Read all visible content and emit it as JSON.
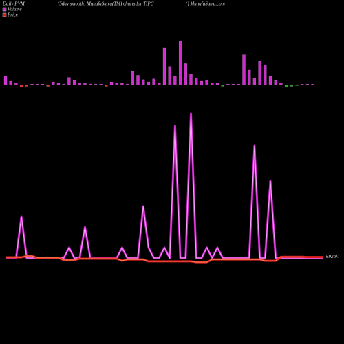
{
  "chart_data": {
    "type": "pvm",
    "title_left": "Daily PVM",
    "title": "(5day smooth) MunafaSutra(TM) charts for TIPC",
    "title_right": "() MunafaSutra.com",
    "bars": {
      "values": [
        12,
        5,
        3,
        -3,
        -2,
        1,
        1,
        1,
        -2,
        4,
        2,
        1,
        10,
        6,
        3,
        2,
        1,
        1,
        1,
        -2,
        4,
        3,
        2,
        1,
        19,
        13,
        7,
        4,
        8,
        3,
        50,
        25,
        12,
        60,
        29,
        15,
        9,
        5,
        6,
        3,
        2,
        -2,
        1,
        1,
        1,
        41,
        20,
        9,
        32,
        27,
        12,
        6,
        3,
        -3,
        -2,
        -1,
        1,
        1,
        1,
        0,
        0
      ],
      "colors": [
        "#d02ad0",
        "#d02ad0",
        "#d02ad0",
        "#e03030",
        "#e03030",
        "#d02ad0",
        "#d02ad0",
        "#d02ad0",
        "#e03030",
        "#d02ad0",
        "#d02ad0",
        "#d02ad0",
        "#d02ad0",
        "#d02ad0",
        "#d02ad0",
        "#d02ad0",
        "#d02ad0",
        "#d02ad0",
        "#d02ad0",
        "#e03030",
        "#d02ad0",
        "#d02ad0",
        "#d02ad0",
        "#d02ad0",
        "#d02ad0",
        "#d02ad0",
        "#d02ad0",
        "#d02ad0",
        "#d02ad0",
        "#d02ad0",
        "#d02ad0",
        "#d02ad0",
        "#d02ad0",
        "#d02ad0",
        "#d02ad0",
        "#d02ad0",
        "#d02ad0",
        "#d02ad0",
        "#d02ad0",
        "#d02ad0",
        "#d02ad0",
        "#22aa22",
        "#d02ad0",
        "#d02ad0",
        "#d02ad0",
        "#d02ad0",
        "#d02ad0",
        "#d02ad0",
        "#d02ad0",
        "#d02ad0",
        "#d02ad0",
        "#d02ad0",
        "#d02ad0",
        "#22aa22",
        "#22aa22",
        "#22aa22",
        "#d02ad0",
        "#d02ad0",
        "#d02ad0",
        "#d02ad0",
        "#d02ad0"
      ],
      "ylim": [
        -10,
        65
      ]
    },
    "xlim": [
      0,
      60
    ],
    "ylim": [
      -10,
      225
    ],
    "y2lim": [
      690,
      750
    ],
    "series": [
      {
        "name": "Volume",
        "color": "#d02ad0",
        "values": [
          0,
          0,
          0,
          60,
          0,
          0,
          0,
          0,
          0,
          0,
          0,
          0,
          15,
          0,
          0,
          45,
          0,
          0,
          0,
          0,
          0,
          0,
          15,
          0,
          0,
          0,
          75,
          15,
          0,
          0,
          15,
          0,
          192,
          0,
          0,
          210,
          0,
          0,
          15,
          0,
          15,
          0,
          0,
          0,
          0,
          0,
          0,
          163,
          0,
          0,
          112,
          0,
          0,
          0,
          0,
          0,
          0,
          0,
          0,
          0,
          0
        ]
      },
      {
        "name": "Price",
        "color": "#e02020",
        "axis": "y2",
        "values": [
          692.8,
          692.8,
          692.8,
          692.8,
          693.3,
          693.3,
          692.6,
          692.6,
          692.6,
          692.6,
          692.6,
          691.8,
          691.8,
          691.8,
          692.3,
          692.3,
          692.3,
          692.3,
          692.3,
          692.3,
          692.3,
          692.3,
          691.5,
          692,
          692,
          692,
          692,
          691.3,
          691.3,
          691.3,
          691.3,
          691.3,
          691.3,
          691.3,
          691.3,
          691.3,
          691,
          691,
          691,
          692,
          692,
          692,
          692,
          692,
          692,
          692,
          692,
          692,
          692,
          691.5,
          691.5,
          691.5,
          693,
          693,
          693,
          693,
          693,
          692.9,
          692.9,
          692.9,
          692.91
        ]
      }
    ]
  }
}
